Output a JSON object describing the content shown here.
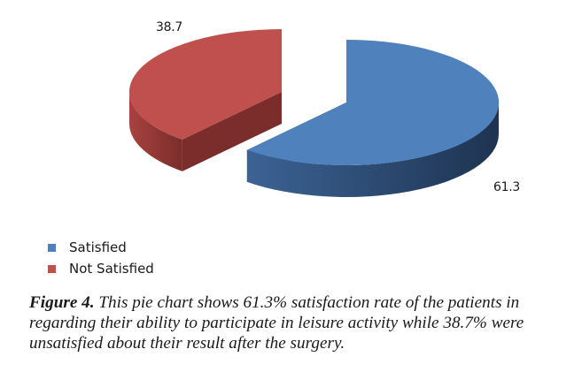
{
  "chart_data": {
    "type": "pie",
    "variant": "3d-exploded",
    "title": "",
    "slices": [
      {
        "label": "Satisfied",
        "value": 61.3,
        "value_label": "61.3",
        "color": "#4F81BD",
        "side_light": "#3C6394",
        "side_dark": "#1E3350"
      },
      {
        "label": "Not Satisfied",
        "value": 38.7,
        "value_label": "38.7",
        "color": "#C0504D",
        "side_light": "#A8423F",
        "side_dark": "#7A2D2B"
      }
    ],
    "legend": {
      "position": "bottom-left",
      "entries": [
        "Satisfied",
        "Not Satisfied"
      ]
    }
  },
  "caption": {
    "figure_label": "Figure 4.",
    "text": " This pie chart shows 61.3% satisfaction rate of the patients in regarding their ability to participate in leisure activity while 38.7% were unsatisfied about their result after the surgery."
  }
}
